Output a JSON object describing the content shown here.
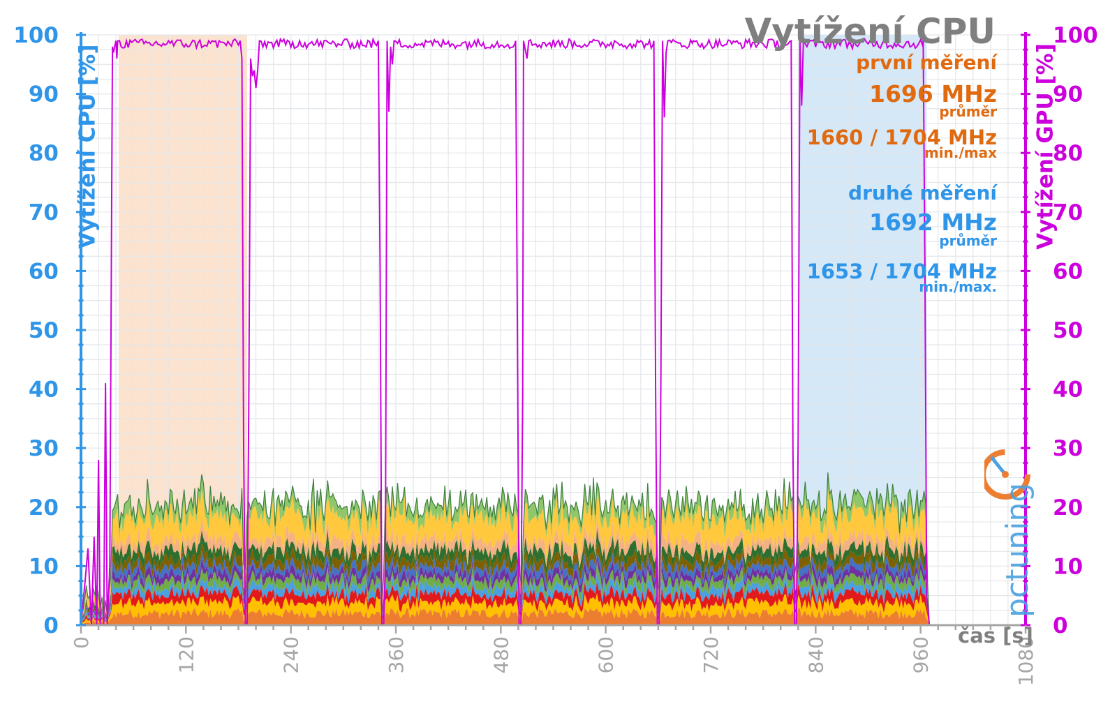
{
  "chart_data": {
    "type": "area",
    "title": "Vytížení CPU",
    "xlabel": "čas [s]",
    "ylabel_left": "Vytížení CPU [%]",
    "ylabel_right": "Vytížení GPU [%]",
    "xlim": [
      0,
      1080
    ],
    "ylim": [
      0,
      100
    ],
    "x_ticks": [
      0,
      120,
      240,
      360,
      480,
      600,
      720,
      840,
      960,
      1080
    ],
    "y_ticks": [
      0,
      10,
      20,
      30,
      40,
      50,
      60,
      70,
      80,
      90,
      100
    ],
    "grid": true,
    "highlight_regions": [
      {
        "x": [
          43,
          190
        ],
        "color": "#fbe3cf"
      },
      {
        "x": [
          822,
          967
        ],
        "color": "#d4e8f8"
      }
    ],
    "cpu_stacked_layers": {
      "colors": [
        "#ed7d31",
        "#ffc000",
        "#e31a1c",
        "#4aa0e0",
        "#70ad47",
        "#7030a0",
        "#4472c4",
        "#7f6000",
        "#2e6e2e",
        "#f4b183",
        "#ffc83d",
        "#8fc76a"
      ],
      "mean_layer_values_percent": [
        2.0,
        1.8,
        1.5,
        1.2,
        1.2,
        1.1,
        1.1,
        1.3,
        1.6,
        1.7,
        4.0,
        2.0
      ],
      "typical_total_percent": 21,
      "segments_s": [
        [
          35,
          185
        ],
        [
          190,
          343
        ],
        [
          348,
          500
        ],
        [
          505,
          658
        ],
        [
          663,
          815
        ],
        [
          820,
          967
        ]
      ]
    },
    "gpu_line": {
      "color": "#cc00dd",
      "points": [
        [
          0,
          0
        ],
        [
          5,
          8
        ],
        [
          8,
          13
        ],
        [
          12,
          0
        ],
        [
          15,
          15
        ],
        [
          18,
          0
        ],
        [
          20,
          28
        ],
        [
          22,
          0
        ],
        [
          26,
          0
        ],
        [
          28,
          41
        ],
        [
          30,
          0
        ],
        [
          33,
          10
        ],
        [
          36,
          98
        ],
        [
          37,
          97
        ],
        [
          40,
          99
        ],
        [
          41,
          96
        ],
        [
          42,
          99
        ],
        [
          60,
          99
        ],
        [
          100,
          99
        ],
        [
          150,
          99
        ],
        [
          182,
          99
        ],
        [
          184,
          96
        ],
        [
          186,
          30
        ],
        [
          188,
          0
        ],
        [
          190,
          0
        ],
        [
          192,
          40
        ],
        [
          194,
          96
        ],
        [
          196,
          93
        ],
        [
          198,
          94
        ],
        [
          200,
          91
        ],
        [
          202,
          94
        ],
        [
          204,
          99
        ],
        [
          250,
          99
        ],
        [
          300,
          99
        ],
        [
          340,
          99
        ],
        [
          342,
          60
        ],
        [
          344,
          0
        ],
        [
          346,
          0
        ],
        [
          348,
          10
        ],
        [
          350,
          99
        ],
        [
          352,
          87
        ],
        [
          354,
          98
        ],
        [
          356,
          95
        ],
        [
          358,
          99
        ],
        [
          400,
          99
        ],
        [
          450,
          99
        ],
        [
          497,
          99
        ],
        [
          499,
          50
        ],
        [
          501,
          0
        ],
        [
          503,
          0
        ],
        [
          505,
          39
        ],
        [
          506,
          99
        ],
        [
          510,
          96
        ],
        [
          512,
          99
        ],
        [
          560,
          99
        ],
        [
          610,
          99
        ],
        [
          655,
          99
        ],
        [
          657,
          40
        ],
        [
          659,
          0
        ],
        [
          661,
          0
        ],
        [
          663,
          41
        ],
        [
          665,
          99
        ],
        [
          667,
          86
        ],
        [
          669,
          97
        ],
        [
          671,
          99
        ],
        [
          700,
          99
        ],
        [
          750,
          99
        ],
        [
          812,
          99
        ],
        [
          814,
          30
        ],
        [
          816,
          0
        ],
        [
          818,
          0
        ],
        [
          820,
          32
        ],
        [
          822,
          99
        ],
        [
          824,
          88
        ],
        [
          826,
          99
        ],
        [
          830,
          98
        ],
        [
          870,
          99
        ],
        [
          920,
          99
        ],
        [
          963,
          99
        ],
        [
          965,
          60
        ],
        [
          967,
          5
        ],
        [
          970,
          0
        ],
        [
          1080,
          0
        ]
      ]
    },
    "annotations": {
      "first": {
        "heading": "první měření",
        "avg": "1696 MHz",
        "avg_label": "průměr",
        "minmax": "1660 / 1704 MHz",
        "minmax_label": "min./max",
        "color": "#e06a10"
      },
      "second": {
        "heading": "druhé měření",
        "avg": "1692 MHz",
        "avg_label": "průměr",
        "minmax": "1653 / 1704 MHz",
        "minmax_label": "min./max.",
        "color": "#2f95e8"
      }
    }
  },
  "logo": {
    "text": "pctuning",
    "colors": {
      "main": "#4aa0e0",
      "accent": "#ed7d31"
    }
  }
}
